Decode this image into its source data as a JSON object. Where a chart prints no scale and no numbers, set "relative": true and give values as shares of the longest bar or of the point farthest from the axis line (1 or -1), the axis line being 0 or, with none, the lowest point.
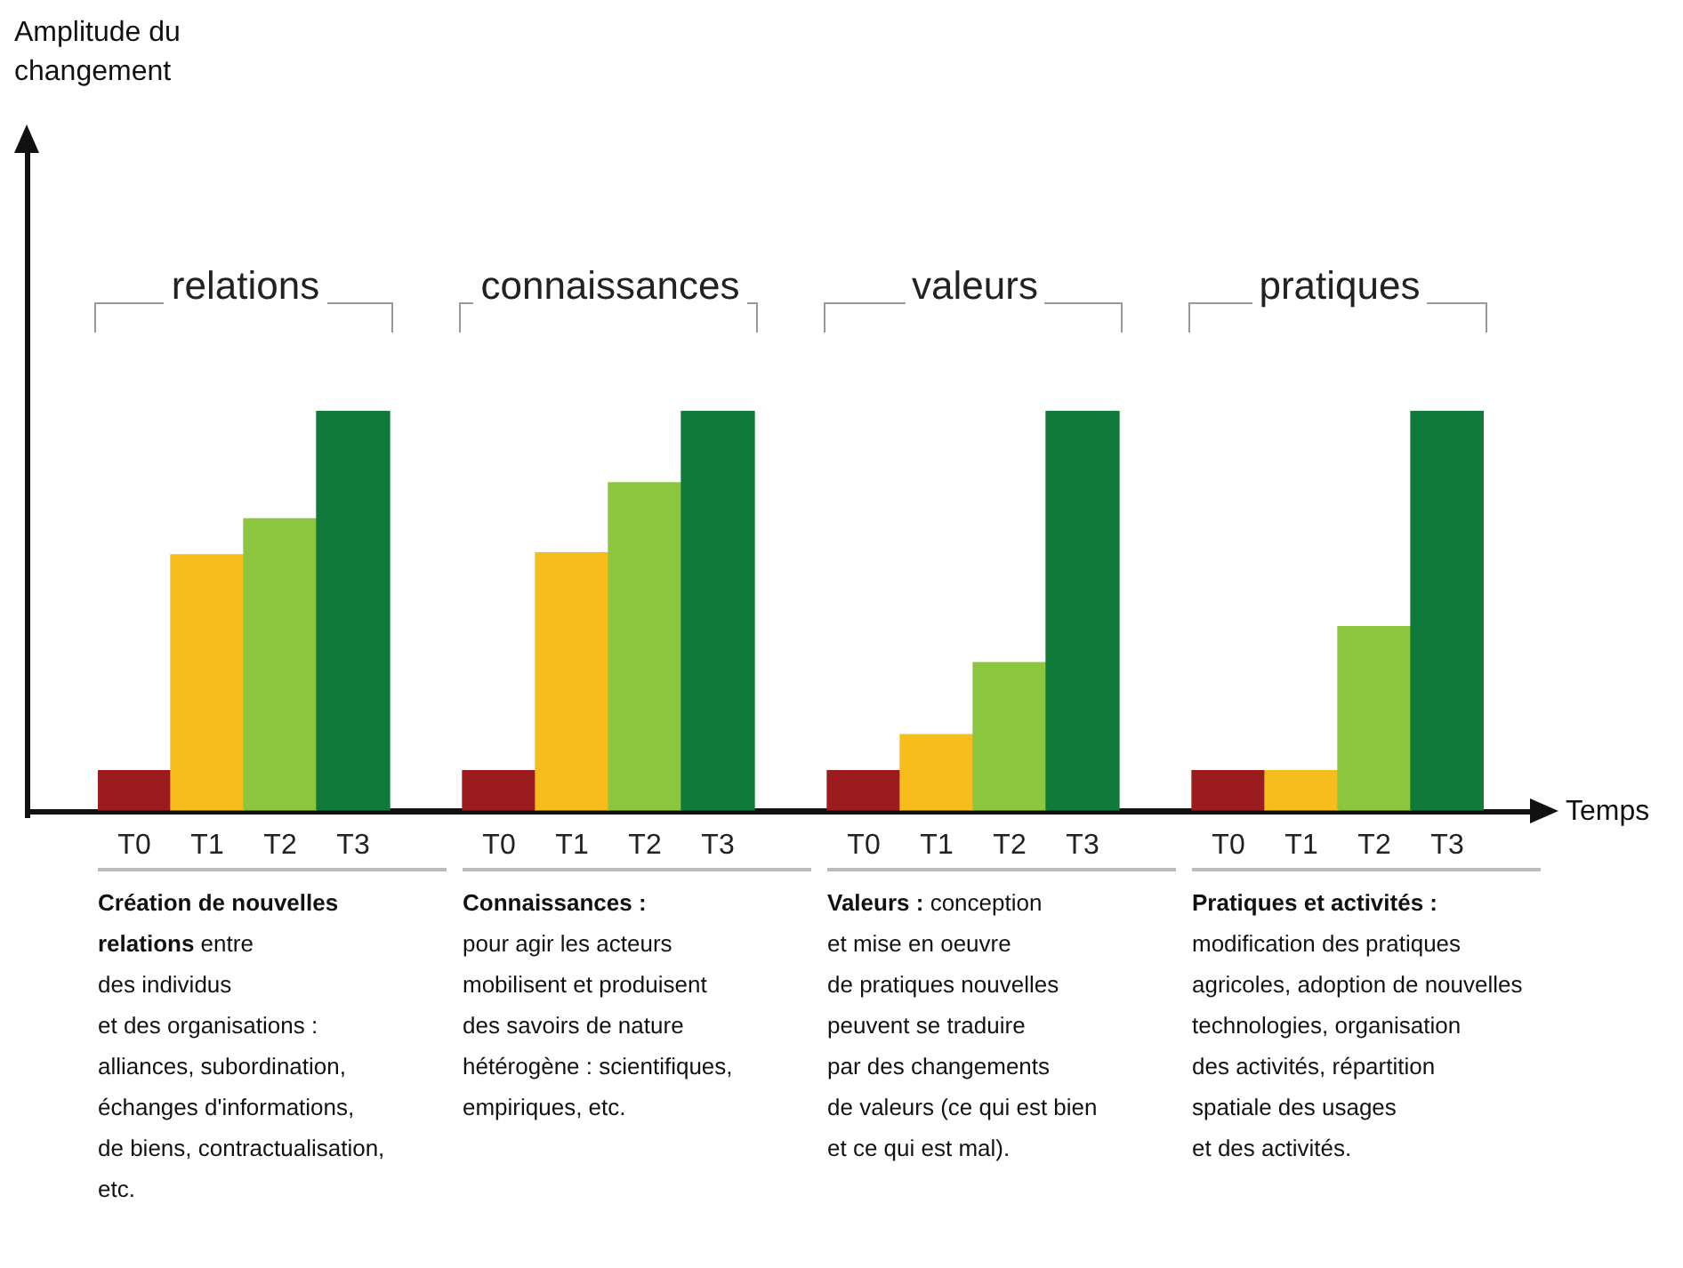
{
  "chart_data": {
    "type": "bar",
    "xlabel": "Temps",
    "relative": true,
    "categories": [
      "T0",
      "T1",
      "T2",
      "T3",
      null,
      "T0",
      "T1",
      "T2",
      "T3",
      null,
      "T0",
      "T1",
      "T2",
      "T3",
      null,
      "T0",
      "T1",
      "T2",
      "T3"
    ],
    "values": [
      0.1,
      0.64,
      0.73,
      1,
      null,
      0.1,
      0.645,
      0.82,
      1,
      null,
      0.1,
      0.19,
      0.37,
      1,
      null,
      0.1,
      0.1,
      0.46,
      1
    ],
    "colors": [
      "#9b1c1f",
      "#f6bd1c",
      "#8cc63f",
      "#0f7a3a",
      "#ffffff",
      "#9b1c1f",
      "#f6bd1c",
      "#8cc63f",
      "#0f7a3a",
      "#ffffff",
      "#9b1c1f",
      "#f6bd1c",
      "#8cc63f",
      "#0f7a3a",
      "#ffffff",
      "#9b1c1f",
      "#f6bd1c",
      "#8cc63f",
      "#0f7a3a"
    ],
    "annotations": [
      "Amplitude du changement",
      "relations",
      "Création de nouvelles\nrelations",
      " entre\ndes individus\net des organisations :\nalliances, subordination,\néchanges d'informations,\nde biens, contractualisation,\netc.",
      "connaissances",
      "Connaissances :",
      "\npour agir les acteurs\nmobilisent et produisent\ndes savoirs de nature\nhétérogène : scientifiques,\nempiriques, etc.",
      "valeurs",
      "Valeurs :",
      "  conception\net mise en oeuvre\nde pratiques nouvelles\npeuvent se traduire\npar des changements\nde valeurs (ce qui est bien\net ce qui est  mal).",
      "pratiques",
      "Pratiques et activités :",
      "\nmodification des pratiques\nagricoles, adoption de nouvelles\ntechnologies, organisation\ndes activités, répartition\nspatiale des usages\net des activités."
    ]
  }
}
